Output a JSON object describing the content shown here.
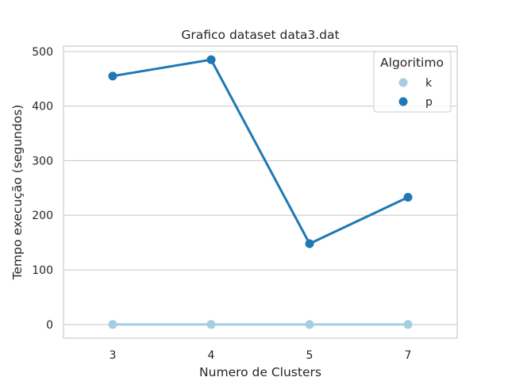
{
  "chart_data": {
    "type": "line",
    "title": "Grafico dataset data3.dat",
    "xlabel": "Numero de Clusters",
    "ylabel": "Tempo execução (segundos)",
    "categories": [
      "3",
      "4",
      "5",
      "7"
    ],
    "ylim": [
      -25,
      510
    ],
    "yticks": [
      0,
      100,
      200,
      300,
      400,
      500
    ],
    "grid": "horizontal",
    "legend": {
      "title": "Algoritimo",
      "placement": "top-right"
    },
    "series": [
      {
        "name": "k",
        "color": "#a6cee3",
        "values": [
          0,
          0,
          0,
          0
        ]
      },
      {
        "name": "p",
        "color": "#1f78b4",
        "values": [
          455,
          485,
          148,
          233
        ]
      }
    ]
  }
}
